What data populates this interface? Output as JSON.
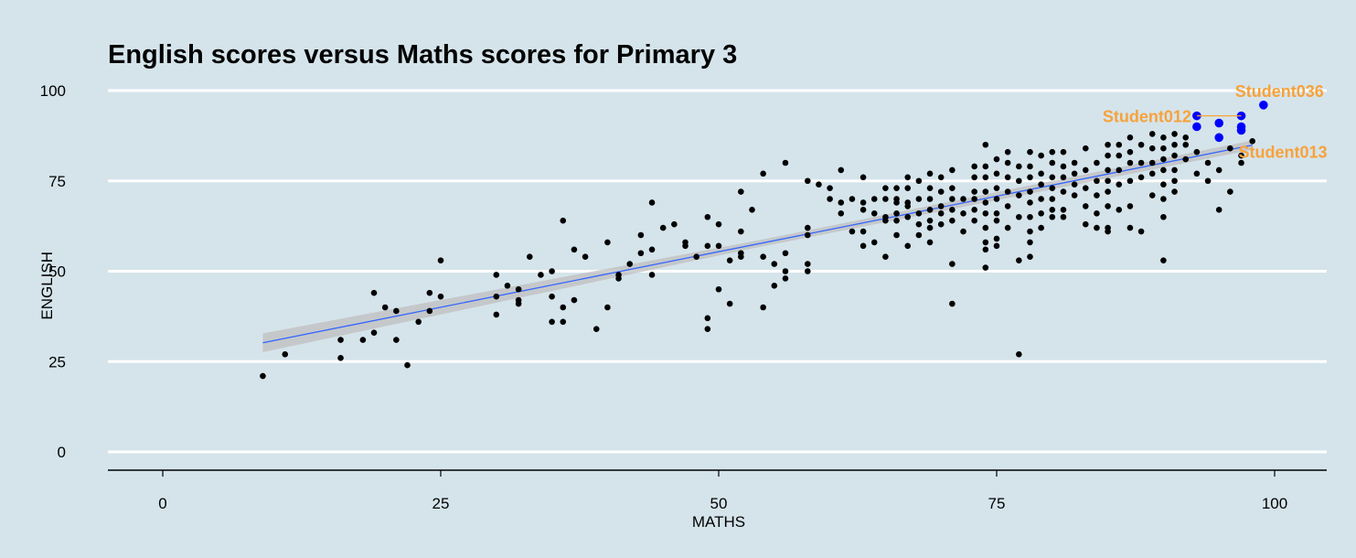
{
  "chart_data": {
    "type": "scatter",
    "title": "English scores versus Maths scores for Primary 3",
    "xlabel": "MATHS",
    "ylabel": "ENGLISH",
    "xlim": [
      -5,
      105
    ],
    "ylim": [
      -5,
      102
    ],
    "xticks": [
      0,
      25,
      50,
      75,
      100
    ],
    "yticks": [
      0,
      25,
      50,
      75,
      100
    ],
    "x_tick_labels": [
      "0",
      "25",
      "50",
      "75",
      "100"
    ],
    "y_tick_labels": [
      "0",
      "25",
      "50",
      "75",
      "100"
    ],
    "grid": "horizontal major only",
    "background_color": "#d5e4eb",
    "point_color": "#000000",
    "highlight_color": "#0000ff",
    "label_color": "#f7a23b",
    "trend_color": "#3366ff",
    "confidence_band_color": "#bfbfbf",
    "trend_line": {
      "type": "linear",
      "x": [
        9,
        98
      ],
      "y": [
        30.2,
        84.9
      ]
    },
    "confidence_band": {
      "x": [
        9,
        53.5,
        98
      ],
      "lower": [
        27.6,
        56.6,
        83.6
      ],
      "upper": [
        32.8,
        58.5,
        86.2
      ]
    },
    "points": [
      [
        9,
        21
      ],
      [
        11,
        27
      ],
      [
        16,
        31
      ],
      [
        16,
        26
      ],
      [
        18,
        31
      ],
      [
        19,
        33
      ],
      [
        19,
        44
      ],
      [
        20,
        40
      ],
      [
        21,
        39
      ],
      [
        21,
        31
      ],
      [
        22,
        24
      ],
      [
        23,
        36
      ],
      [
        24,
        44
      ],
      [
        24,
        39
      ],
      [
        25,
        43
      ],
      [
        25,
        53
      ],
      [
        30,
        49
      ],
      [
        30,
        43
      ],
      [
        30,
        38
      ],
      [
        31,
        46
      ],
      [
        32,
        45
      ],
      [
        32,
        42
      ],
      [
        32,
        41
      ],
      [
        33,
        54
      ],
      [
        34,
        49
      ],
      [
        35,
        50
      ],
      [
        35,
        43
      ],
      [
        35,
        36
      ],
      [
        36,
        64
      ],
      [
        36,
        40
      ],
      [
        36,
        36
      ],
      [
        37,
        56
      ],
      [
        37,
        42
      ],
      [
        38,
        54
      ],
      [
        39,
        34
      ],
      [
        40,
        58
      ],
      [
        40,
        40
      ],
      [
        41,
        49
      ],
      [
        41,
        48
      ],
      [
        42,
        52
      ],
      [
        43,
        55
      ],
      [
        43,
        60
      ],
      [
        44,
        69
      ],
      [
        44,
        56
      ],
      [
        44,
        49
      ],
      [
        45,
        62
      ],
      [
        46,
        63
      ],
      [
        47,
        58
      ],
      [
        47,
        57
      ],
      [
        48,
        54
      ],
      [
        49,
        65
      ],
      [
        49,
        57
      ],
      [
        49,
        37
      ],
      [
        49,
        34
      ],
      [
        50,
        63
      ],
      [
        50,
        57
      ],
      [
        50,
        45
      ],
      [
        51,
        53
      ],
      [
        51,
        41
      ],
      [
        52,
        72
      ],
      [
        52,
        61
      ],
      [
        52,
        55
      ],
      [
        52,
        54
      ],
      [
        53,
        67
      ],
      [
        54,
        77
      ],
      [
        54,
        54
      ],
      [
        54,
        40
      ],
      [
        55,
        52
      ],
      [
        55,
        46
      ],
      [
        56,
        80
      ],
      [
        56,
        55
      ],
      [
        56,
        50
      ],
      [
        56,
        48
      ],
      [
        58,
        75
      ],
      [
        58,
        62
      ],
      [
        58,
        60
      ],
      [
        58,
        52
      ],
      [
        58,
        50
      ],
      [
        59,
        74
      ],
      [
        60,
        73
      ],
      [
        60,
        70
      ],
      [
        61,
        78
      ],
      [
        61,
        69
      ],
      [
        61,
        66
      ],
      [
        62,
        70
      ],
      [
        62,
        61
      ],
      [
        63,
        76
      ],
      [
        63,
        69
      ],
      [
        63,
        67
      ],
      [
        63,
        61
      ],
      [
        63,
        57
      ],
      [
        64,
        70
      ],
      [
        64,
        66
      ],
      [
        64,
        58
      ],
      [
        65,
        73
      ],
      [
        65,
        70
      ],
      [
        65,
        65
      ],
      [
        65,
        64
      ],
      [
        65,
        54
      ],
      [
        66,
        73
      ],
      [
        66,
        70
      ],
      [
        66,
        69
      ],
      [
        66,
        66
      ],
      [
        66,
        64
      ],
      [
        66,
        60
      ],
      [
        67,
        76
      ],
      [
        67,
        73
      ],
      [
        67,
        69
      ],
      [
        67,
        68
      ],
      [
        67,
        65
      ],
      [
        67,
        57
      ],
      [
        68,
        75
      ],
      [
        68,
        70
      ],
      [
        68,
        66
      ],
      [
        68,
        63
      ],
      [
        68,
        60
      ],
      [
        69,
        77
      ],
      [
        69,
        73
      ],
      [
        69,
        70
      ],
      [
        69,
        67
      ],
      [
        69,
        64
      ],
      [
        69,
        62
      ],
      [
        69,
        58
      ],
      [
        70,
        76
      ],
      [
        70,
        72
      ],
      [
        70,
        68
      ],
      [
        70,
        66
      ],
      [
        70,
        63
      ],
      [
        71,
        78
      ],
      [
        71,
        73
      ],
      [
        71,
        70
      ],
      [
        71,
        67
      ],
      [
        71,
        64
      ],
      [
        71,
        52
      ],
      [
        71,
        41
      ],
      [
        72,
        70
      ],
      [
        72,
        66
      ],
      [
        72,
        61
      ],
      [
        73,
        79
      ],
      [
        73,
        76
      ],
      [
        73,
        72
      ],
      [
        73,
        70
      ],
      [
        73,
        67
      ],
      [
        73,
        64
      ],
      [
        74,
        85
      ],
      [
        74,
        79
      ],
      [
        74,
        76
      ],
      [
        74,
        72
      ],
      [
        74,
        69
      ],
      [
        74,
        66
      ],
      [
        74,
        62
      ],
      [
        74,
        58
      ],
      [
        74,
        56
      ],
      [
        74,
        51
      ],
      [
        75,
        81
      ],
      [
        75,
        77
      ],
      [
        75,
        73
      ],
      [
        75,
        70
      ],
      [
        75,
        66
      ],
      [
        75,
        64
      ],
      [
        75,
        59
      ],
      [
        75,
        57
      ],
      [
        76,
        83
      ],
      [
        76,
        80
      ],
      [
        76,
        76
      ],
      [
        76,
        72
      ],
      [
        76,
        68
      ],
      [
        76,
        62
      ],
      [
        77,
        79
      ],
      [
        77,
        75
      ],
      [
        77,
        71
      ],
      [
        77,
        65
      ],
      [
        77,
        53
      ],
      [
        77,
        27
      ],
      [
        78,
        83
      ],
      [
        78,
        79
      ],
      [
        78,
        76
      ],
      [
        78,
        72
      ],
      [
        78,
        69
      ],
      [
        78,
        65
      ],
      [
        78,
        61
      ],
      [
        78,
        58
      ],
      [
        78,
        54
      ],
      [
        79,
        82
      ],
      [
        79,
        77
      ],
      [
        79,
        74
      ],
      [
        79,
        70
      ],
      [
        79,
        66
      ],
      [
        79,
        62
      ],
      [
        80,
        83
      ],
      [
        80,
        80
      ],
      [
        80,
        76
      ],
      [
        80,
        73
      ],
      [
        80,
        70
      ],
      [
        80,
        67
      ],
      [
        80,
        65
      ],
      [
        81,
        83
      ],
      [
        81,
        79
      ],
      [
        81,
        76
      ],
      [
        81,
        72
      ],
      [
        81,
        67
      ],
      [
        81,
        65
      ],
      [
        82,
        80
      ],
      [
        82,
        77
      ],
      [
        82,
        74
      ],
      [
        82,
        71
      ],
      [
        83,
        84
      ],
      [
        83,
        78
      ],
      [
        83,
        73
      ],
      [
        83,
        68
      ],
      [
        83,
        63
      ],
      [
        84,
        80
      ],
      [
        84,
        75
      ],
      [
        84,
        71
      ],
      [
        84,
        66
      ],
      [
        84,
        62
      ],
      [
        85,
        85
      ],
      [
        85,
        82
      ],
      [
        85,
        78
      ],
      [
        85,
        75
      ],
      [
        85,
        72
      ],
      [
        85,
        68
      ],
      [
        85,
        62
      ],
      [
        85,
        61
      ],
      [
        86,
        85
      ],
      [
        86,
        82
      ],
      [
        86,
        78
      ],
      [
        86,
        74
      ],
      [
        86,
        67
      ],
      [
        87,
        87
      ],
      [
        87,
        83
      ],
      [
        87,
        80
      ],
      [
        87,
        75
      ],
      [
        87,
        68
      ],
      [
        87,
        62
      ],
      [
        88,
        85
      ],
      [
        88,
        80
      ],
      [
        88,
        76
      ],
      [
        88,
        61
      ],
      [
        89,
        88
      ],
      [
        89,
        84
      ],
      [
        89,
        80
      ],
      [
        89,
        77
      ],
      [
        89,
        71
      ],
      [
        90,
        87
      ],
      [
        90,
        84
      ],
      [
        90,
        81
      ],
      [
        90,
        78
      ],
      [
        90,
        74
      ],
      [
        90,
        70
      ],
      [
        90,
        65
      ],
      [
        90,
        53
      ],
      [
        91,
        88
      ],
      [
        91,
        85
      ],
      [
        91,
        82
      ],
      [
        91,
        78
      ],
      [
        91,
        75
      ],
      [
        91,
        72
      ],
      [
        92,
        87
      ],
      [
        92,
        85
      ],
      [
        92,
        81
      ],
      [
        93,
        83
      ],
      [
        93,
        77
      ],
      [
        94,
        80
      ],
      [
        94,
        75
      ],
      [
        95,
        78
      ],
      [
        95,
        67
      ],
      [
        96,
        72
      ],
      [
        96,
        84
      ],
      [
        97,
        82
      ],
      [
        97,
        80
      ],
      [
        98,
        86
      ]
    ],
    "highlighted_points": [
      [
        93,
        93
      ],
      [
        93,
        90
      ],
      [
        95,
        91
      ],
      [
        95,
        87
      ],
      [
        97,
        93
      ],
      [
        97,
        90
      ],
      [
        97,
        89
      ],
      [
        99,
        96
      ]
    ],
    "annotations": [
      {
        "text": "Student036",
        "x": 99,
        "y": 96,
        "line_to": [
          99,
          96
        ]
      },
      {
        "text": "Student012",
        "x": 93,
        "y": 93,
        "line_to": [
          97,
          93
        ]
      },
      {
        "text": "Student013",
        "x": 97,
        "y": 89,
        "line_to": [
          97,
          89
        ]
      }
    ]
  }
}
